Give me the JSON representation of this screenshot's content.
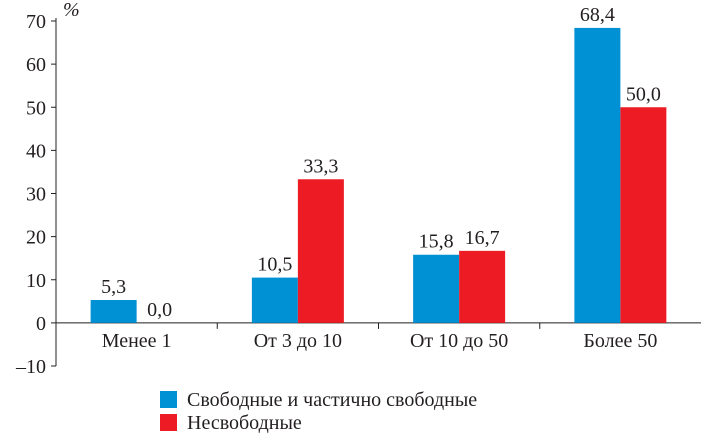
{
  "chart_data": {
    "type": "bar",
    "unit": "%",
    "categories": [
      "Менее 1",
      "От 3 до 10",
      "От 10 до 50",
      "Более 50"
    ],
    "series": [
      {
        "name": "Свободные и частично свободные",
        "color": "#0091d5",
        "values": [
          5.3,
          10.5,
          15.8,
          68.4
        ],
        "labels": [
          "5,3",
          "10,5",
          "15,8",
          "68,4"
        ]
      },
      {
        "name": "Несвободные",
        "color": "#ed1c24",
        "values": [
          0.0,
          33.3,
          16.7,
          50.0
        ],
        "labels": [
          "0,0",
          "33,3",
          "16,7",
          "50,0"
        ]
      }
    ],
    "ylim": [
      -10,
      70
    ],
    "yticks": [
      -10,
      0,
      10,
      20,
      30,
      40,
      50,
      60,
      70
    ],
    "ytick_labels": [
      "–10",
      "0",
      "10",
      "20",
      "30",
      "40",
      "50",
      "60",
      "70"
    ],
    "legend_position": "bottom-left"
  }
}
